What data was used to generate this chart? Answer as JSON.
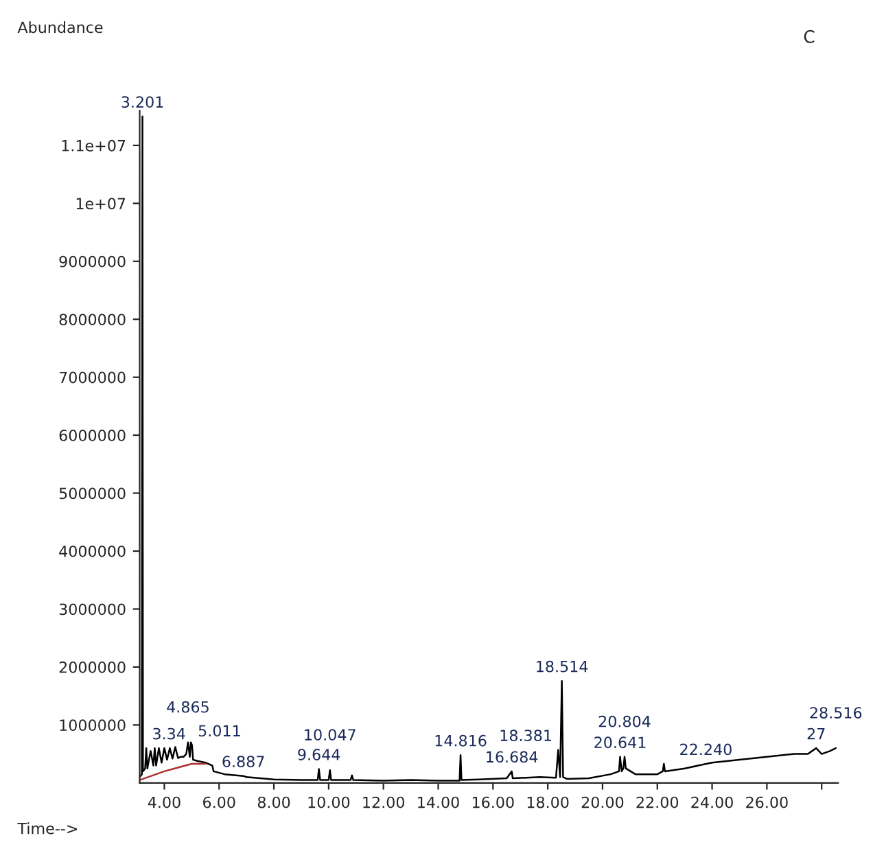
{
  "chart_data": {
    "type": "line",
    "title": "C",
    "xlabel": "Time-->",
    "xlim": [
      3.1,
      28.6
    ],
    "ylim": [
      0,
      11600000
    ],
    "xticks": [
      {
        "value": 4,
        "label": "4.00"
      },
      {
        "value": 6,
        "label": "6.00"
      },
      {
        "value": 8,
        "label": "8.00"
      },
      {
        "value": 10,
        "label": "10.00"
      },
      {
        "value": 12,
        "label": "12.00"
      },
      {
        "value": 14,
        "label": "14.00"
      },
      {
        "value": 16,
        "label": "16.00"
      },
      {
        "value": 18,
        "label": "18.00"
      },
      {
        "value": 20,
        "label": "20.00"
      },
      {
        "value": 22,
        "label": "22.00"
      },
      {
        "value": 24,
        "label": "24.00"
      },
      {
        "value": 26,
        "label": "26.00"
      },
      {
        "value": 28,
        "label": null
      }
    ],
    "yticks": [
      1000000,
      2000000,
      3000000,
      4000000,
      5000000,
      6000000,
      7000000,
      8000000,
      9000000,
      {
        "value": 10000000,
        "label": "1e+07"
      },
      {
        "value": 11000000,
        "label": "1.1e+07"
      }
    ],
    "grid": false,
    "legend": false,
    "marker": "none",
    "line_style": "solid",
    "series": [
      {
        "color": "#000000",
        "x": [
          3.1,
          3.18,
          3.201,
          3.22,
          3.3,
          3.34,
          3.38,
          3.5,
          3.6,
          3.65,
          3.7,
          3.8,
          3.9,
          4.0,
          4.1,
          4.2,
          4.3,
          4.4,
          4.5,
          4.6,
          4.7,
          4.8,
          4.865,
          4.93,
          4.97,
          5.011,
          5.05,
          5.2,
          5.5,
          5.75,
          5.8,
          6.2,
          6.887,
          7.0,
          7.5,
          8.0,
          9.0,
          9.6,
          9.644,
          9.69,
          10.0,
          10.047,
          10.09,
          10.8,
          10.85,
          10.9,
          12.0,
          13.0,
          14.0,
          14.78,
          14.816,
          14.85,
          15.5,
          16.5,
          16.684,
          16.72,
          17.7,
          18.3,
          18.381,
          18.45,
          18.514,
          18.56,
          18.7,
          19.5,
          20.3,
          20.6,
          20.641,
          20.7,
          20.76,
          20.804,
          20.85,
          21.2,
          22.0,
          22.2,
          22.24,
          22.28,
          23.0,
          24.0,
          25.0,
          26.0,
          27.0,
          27.5,
          27.8,
          28.0,
          28.3,
          28.516
        ],
        "values": [
          100000,
          150000,
          11500000,
          200000,
          250000,
          600000,
          250000,
          550000,
          300000,
          600000,
          300000,
          600000,
          350000,
          600000,
          400000,
          600000,
          420000,
          620000,
          430000,
          450000,
          450000,
          500000,
          700000,
          450000,
          700000,
          650000,
          400000,
          380000,
          350000,
          300000,
          200000,
          150000,
          120000,
          100000,
          80000,
          60000,
          50000,
          50000,
          240000,
          50000,
          50000,
          220000,
          50000,
          50000,
          130000,
          50000,
          40000,
          50000,
          40000,
          40000,
          480000,
          50000,
          60000,
          80000,
          200000,
          80000,
          100000,
          90000,
          570000,
          100000,
          1760000,
          100000,
          70000,
          80000,
          150000,
          200000,
          450000,
          200000,
          250000,
          450000,
          250000,
          150000,
          150000,
          200000,
          330000,
          200000,
          250000,
          350000,
          400000,
          450000,
          500000,
          500000,
          600000,
          500000,
          550000,
          600000
        ]
      },
      {
        "color": "#b03030",
        "x": [
          3.1,
          4.0,
          5.0,
          5.5
        ],
        "values": [
          50000,
          200000,
          330000,
          330000
        ]
      }
    ],
    "annotations": [
      "Abundance",
      {
        "text": "3.201",
        "x": 3.201,
        "y": 11500000
      },
      {
        "text": "3.34",
        "x": 3.34,
        "y": 600000
      },
      {
        "text": "4.865",
        "x": 4.865,
        "y": 700000
      },
      {
        "text": "5.011",
        "x": 5.011,
        "y": 650000
      },
      {
        "text": "6.887",
        "x": 6.887,
        "y": 120000
      },
      {
        "text": "9.644",
        "x": 9.644,
        "y": 240000
      },
      {
        "text": "10.047",
        "x": 10.047,
        "y": 220000
      },
      {
        "text": "14.816",
        "x": 14.816,
        "y": 480000
      },
      {
        "text": "16.684",
        "x": 16.684,
        "y": 200000
      },
      {
        "text": "18.381",
        "x": 18.381,
        "y": 570000
      },
      {
        "text": "18.514",
        "x": 18.514,
        "y": 1760000
      },
      {
        "text": "20.641",
        "x": 20.641,
        "y": 450000
      },
      {
        "text": "20.804",
        "x": 20.804,
        "y": 450000
      },
      {
        "text": "22.240",
        "x": 22.24,
        "y": 330000
      },
      {
        "text": "27",
        "x": 27.8,
        "y": 600000
      },
      {
        "text": "28.516",
        "x": 28.516,
        "y": 600000
      }
    ]
  }
}
